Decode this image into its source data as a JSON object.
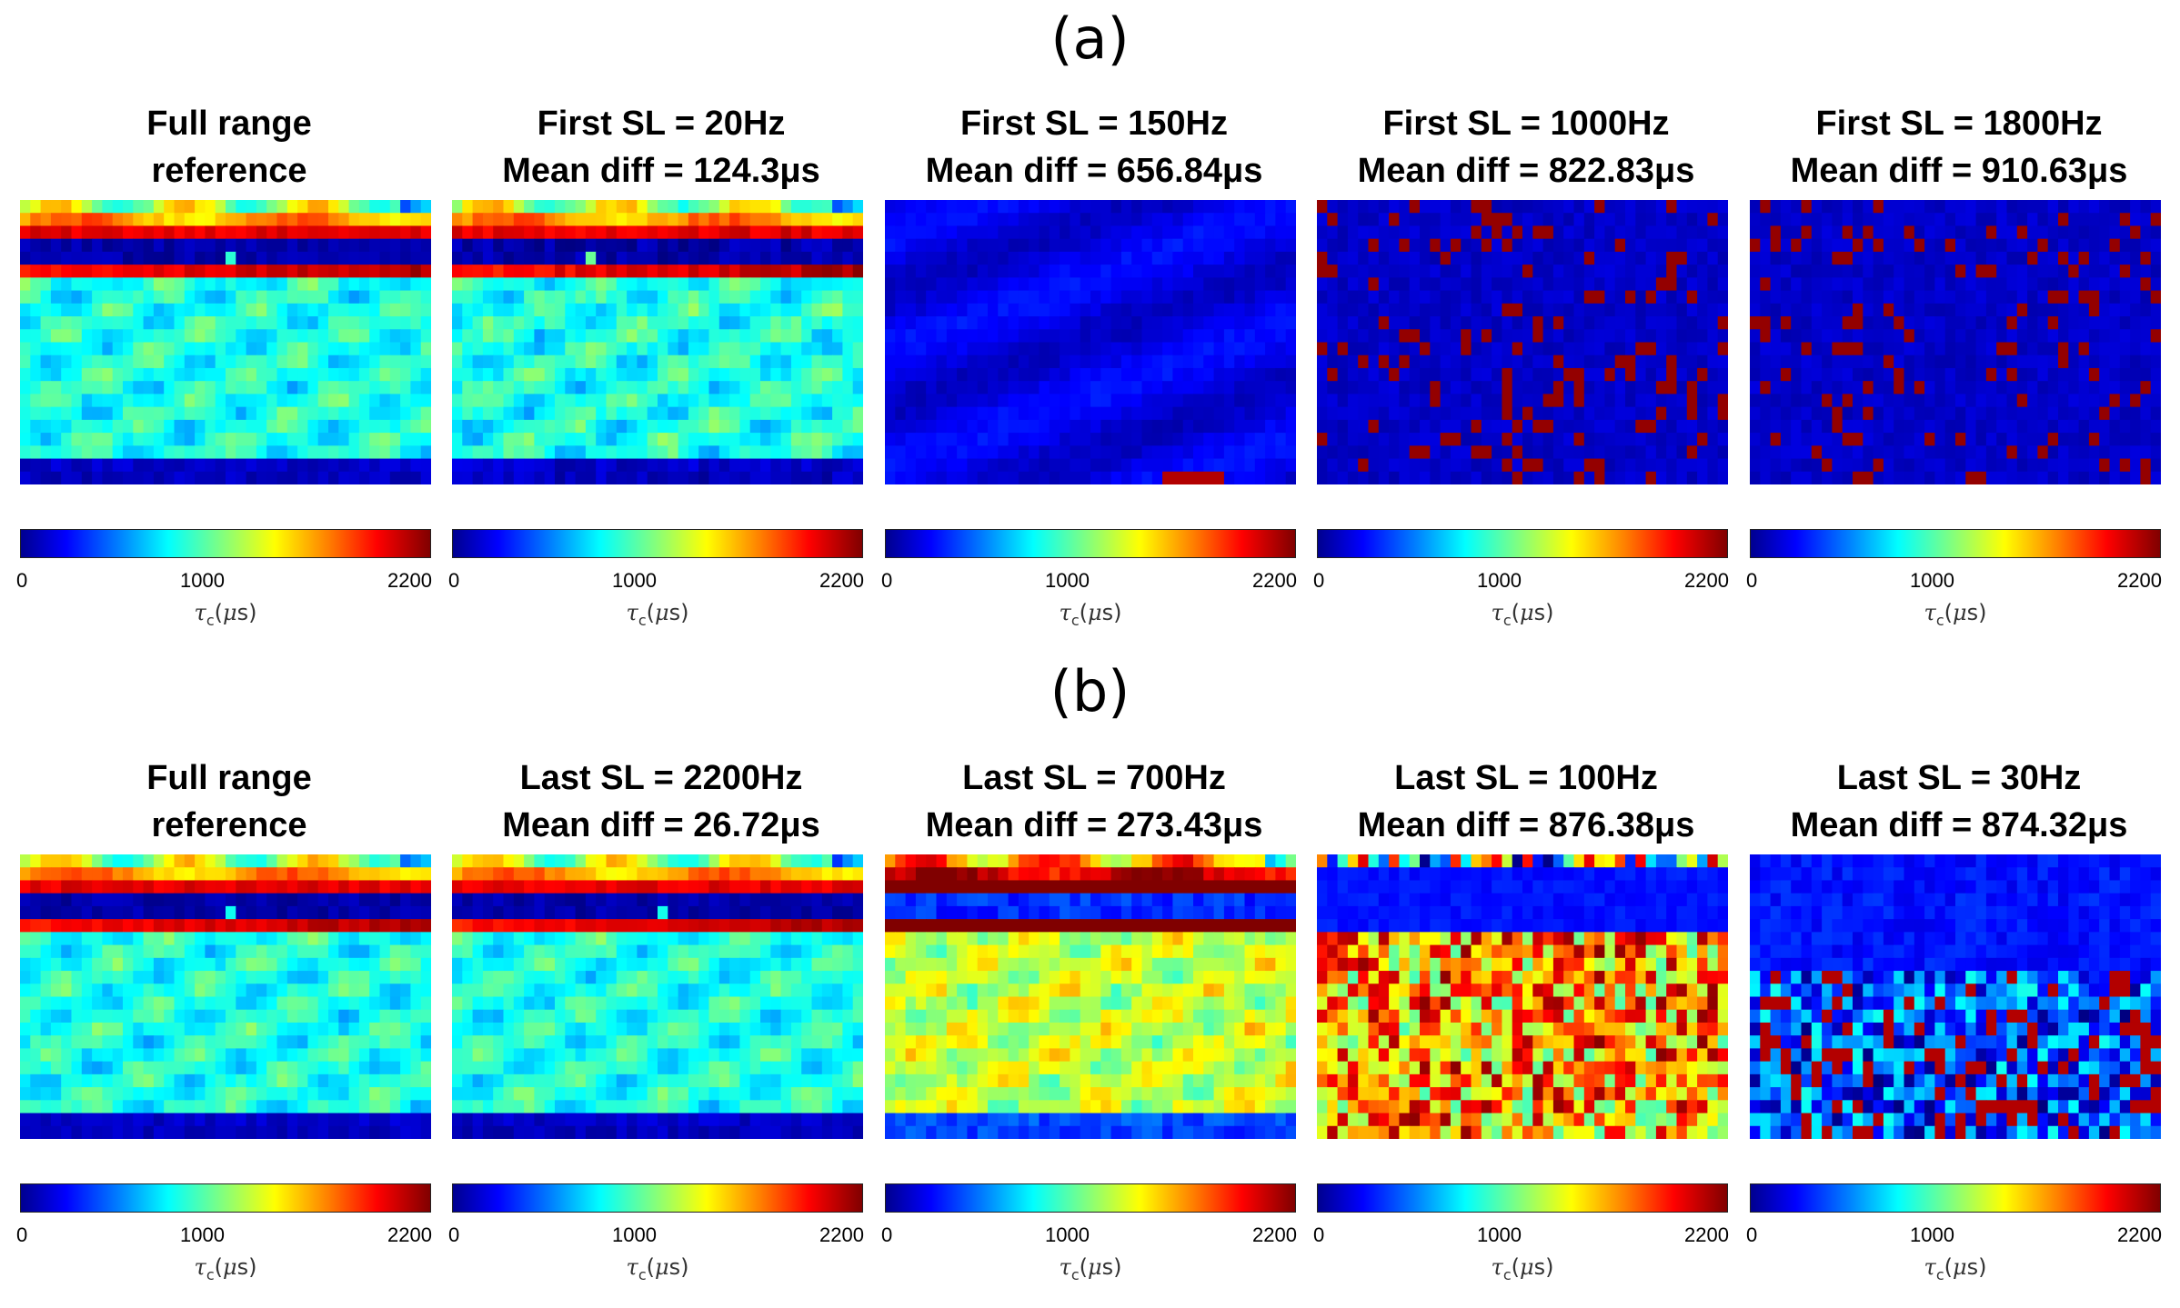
{
  "panel_labels": {
    "a": "(a)",
    "b": "(b)"
  },
  "colorbar": {
    "min": "0",
    "mid": "1000",
    "max": "2200",
    "label_sym": "τ",
    "label_sub": "c",
    "label_unit_open": "(",
    "label_unit_mu": "μ",
    "label_unit_close": "s)"
  },
  "chart_data": {
    "type": "heatmap",
    "value_range": [
      0,
      2200
    ],
    "colormap": "jet",
    "colorbar_ticks": [
      0,
      1000,
      2200
    ],
    "colorbar_label": "τc(μs)",
    "grid": {
      "rows": 22,
      "cols": 40
    },
    "subplots": [
      {
        "id": "a1",
        "row": "a",
        "line1": "Full range",
        "line2": "reference",
        "pattern": "reference",
        "mean_diff_us": null
      },
      {
        "id": "a2",
        "row": "a",
        "line1": "First SL = 20Hz",
        "line2": "Mean diff = 124.3μs",
        "pattern": "reference_noisy",
        "mean_diff_us": 124.3
      },
      {
        "id": "a3",
        "row": "a",
        "line1": "First SL = 150Hz",
        "line2": "Mean diff = 656.84μs",
        "pattern": "mostly_low",
        "mean_diff_us": 656.84
      },
      {
        "id": "a4",
        "row": "a",
        "line1": "First SL = 1000Hz",
        "line2": "Mean diff = 822.83μs",
        "pattern": "low_with_max_blocks",
        "mean_diff_us": 822.83
      },
      {
        "id": "a5",
        "row": "a",
        "line1": "First SL = 1800Hz",
        "line2": "Mean diff = 910.63μs",
        "pattern": "low_with_max_blocks",
        "mean_diff_us": 910.63
      },
      {
        "id": "b1",
        "row": "b",
        "line1": "Full range",
        "line2": "reference",
        "pattern": "reference",
        "mean_diff_us": null
      },
      {
        "id": "b2",
        "row": "b",
        "line1": "Last SL = 2200Hz",
        "line2": "Mean diff = 26.72μs",
        "pattern": "reference",
        "mean_diff_us": 26.72
      },
      {
        "id": "b3",
        "row": "b",
        "line1": "Last SL = 700Hz",
        "line2": "Mean diff = 273.43μs",
        "pattern": "shifted_up",
        "mean_diff_us": 273.43
      },
      {
        "id": "b4",
        "row": "b",
        "line1": "Last SL = 100Hz",
        "line2": "Mean diff = 876.38μs",
        "pattern": "high_mixed",
        "mean_diff_us": 876.38
      },
      {
        "id": "b5",
        "row": "b",
        "line1": "Last SL = 30Hz",
        "line2": "Mean diff = 874.32μs",
        "pattern": "low_mixed",
        "mean_diff_us": 874.32
      }
    ]
  }
}
